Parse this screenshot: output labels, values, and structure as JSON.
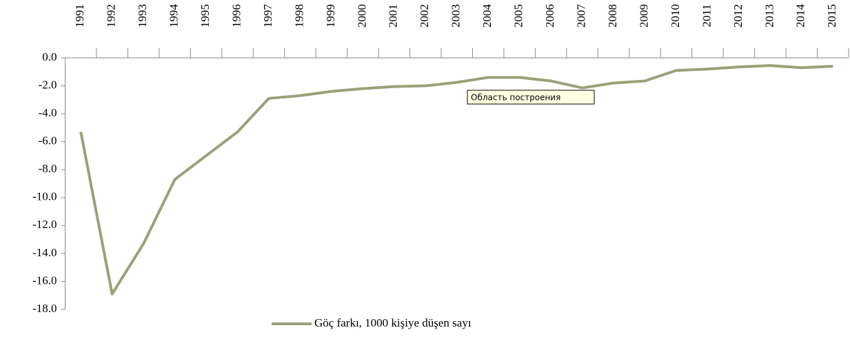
{
  "chart_data": {
    "type": "line",
    "categories": [
      "1991",
      "1992",
      "1993",
      "1994",
      "1995",
      "1996",
      "1997",
      "1998",
      "1999",
      "2000",
      "2001",
      "2002",
      "2003",
      "2004",
      "2005",
      "2006",
      "2007",
      "2008",
      "2009",
      "2010",
      "2011",
      "2012",
      "2013",
      "2014",
      "2015"
    ],
    "series": [
      {
        "name": "Göç farkı, 1000 kişiye düşen sayı",
        "color": "#99a279",
        "values": [
          -5.3,
          -16.9,
          -13.3,
          -8.7,
          -7.0,
          -5.3,
          -2.9,
          -2.7,
          -2.4,
          -2.2,
          -2.05,
          -2.0,
          -1.75,
          -1.4,
          -1.4,
          -1.65,
          -2.15,
          -1.8,
          -1.65,
          -0.9,
          -0.8,
          -0.65,
          -0.55,
          -0.7,
          -0.6
        ]
      }
    ],
    "ylim": [
      -18,
      0
    ],
    "yticks": [
      {
        "value": 0,
        "label": "0.0"
      },
      {
        "value": -2,
        "label": "-2.0"
      },
      {
        "value": -4,
        "label": "-4.0"
      },
      {
        "value": -6,
        "label": "-6.0"
      },
      {
        "value": -8,
        "label": "-8.0"
      },
      {
        "value": -10,
        "label": "-10.0"
      },
      {
        "value": -12,
        "label": "-12.0"
      },
      {
        "value": -14,
        "label": "-14.0"
      },
      {
        "value": -16,
        "label": "-16.0"
      },
      {
        "value": -18,
        "label": "-18.0"
      }
    ],
    "annotations": [
      {
        "text": "Область построения"
      }
    ],
    "legend": "bottom"
  }
}
